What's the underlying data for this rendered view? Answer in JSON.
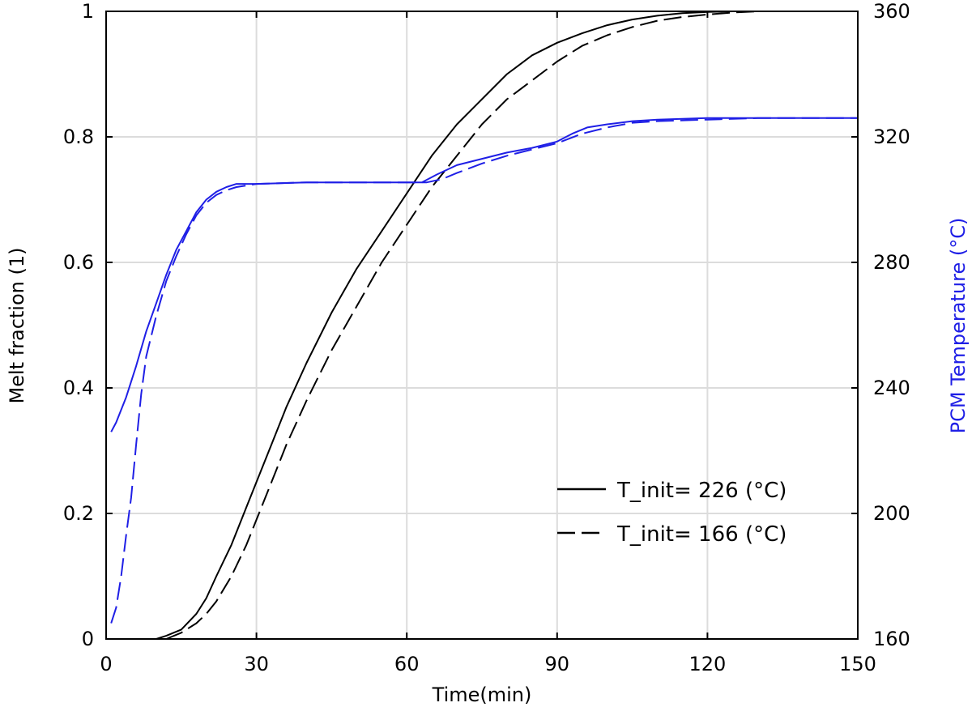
{
  "chart_data": {
    "type": "line",
    "xlabel": "Time(min)",
    "ylabel_left": "Melt fraction (1)",
    "ylabel_right": "PCM Temperature (°C)",
    "xlim": [
      0,
      150
    ],
    "ylim_left": [
      0,
      1
    ],
    "ylim_right": [
      160,
      360
    ],
    "x_ticks": [
      0,
      30,
      60,
      90,
      120,
      150
    ],
    "y_ticks_left": [
      0,
      0.2,
      0.4,
      0.6,
      0.8,
      1
    ],
    "y_ticks_left_labels": [
      "0",
      "0.2",
      "0.4",
      "0.6",
      "0.8",
      "1"
    ],
    "y_ticks_right": [
      160,
      200,
      240,
      280,
      320,
      360
    ],
    "grid": true,
    "legend_position": "lower-right",
    "colors": {
      "melt": "#000000",
      "temperature": "#1f1fe6",
      "grid": "#dcdcdc"
    },
    "legend": [
      {
        "label": "T_init= 226 (°C)",
        "style": "solid"
      },
      {
        "label": "T_init= 166 (°C)",
        "style": "dashed"
      }
    ],
    "series": [
      {
        "axis": "left",
        "color": "#000000",
        "style": "solid",
        "x": [
          10,
          12,
          15,
          18,
          20,
          22,
          25,
          28,
          30,
          33,
          36,
          40,
          45,
          50,
          55,
          60,
          65,
          70,
          75,
          80,
          85,
          90,
          95,
          100,
          105,
          110,
          115,
          120,
          125,
          130,
          135,
          140,
          145,
          150
        ],
        "y": [
          0,
          0.005,
          0.015,
          0.04,
          0.065,
          0.1,
          0.15,
          0.21,
          0.25,
          0.31,
          0.37,
          0.44,
          0.52,
          0.59,
          0.65,
          0.71,
          0.77,
          0.82,
          0.86,
          0.9,
          0.93,
          0.95,
          0.965,
          0.978,
          0.987,
          0.993,
          0.997,
          0.999,
          1,
          1,
          1,
          1,
          1,
          1
        ]
      },
      {
        "axis": "left",
        "color": "#000000",
        "style": "dashed",
        "x": [
          12,
          15,
          18,
          20,
          22,
          25,
          28,
          30,
          33,
          36,
          40,
          45,
          50,
          55,
          60,
          65,
          70,
          75,
          80,
          85,
          90,
          95,
          100,
          105,
          110,
          115,
          120,
          125,
          130,
          135,
          140,
          145,
          150
        ],
        "y": [
          0,
          0.01,
          0.025,
          0.04,
          0.06,
          0.1,
          0.15,
          0.19,
          0.25,
          0.31,
          0.38,
          0.46,
          0.53,
          0.6,
          0.66,
          0.72,
          0.77,
          0.82,
          0.86,
          0.89,
          0.92,
          0.945,
          0.962,
          0.975,
          0.985,
          0.991,
          0.995,
          0.998,
          1,
          1,
          1,
          1,
          1
        ]
      },
      {
        "axis": "right",
        "color": "#1f1fe6",
        "style": "solid",
        "x": [
          1,
          2,
          4,
          6,
          8,
          10,
          12,
          14,
          16,
          18,
          20,
          22,
          24,
          26,
          30,
          40,
          50,
          60,
          63,
          66,
          70,
          75,
          80,
          85,
          90,
          93,
          96,
          100,
          105,
          110,
          120,
          130,
          140,
          150
        ],
        "y": [
          226,
          229,
          237,
          247,
          258,
          267,
          276,
          284,
          290,
          296,
          300,
          302.5,
          304,
          305,
          305,
          305.5,
          305.5,
          305.5,
          305.5,
          308,
          311,
          313,
          315,
          316.5,
          318.5,
          321,
          323,
          324,
          325,
          325.5,
          326,
          326,
          326,
          326
        ]
      },
      {
        "axis": "right",
        "color": "#1f1fe6",
        "style": "dashed",
        "x": [
          1,
          2,
          3,
          4,
          5,
          6,
          7,
          8,
          10,
          12,
          14,
          16,
          18,
          20,
          22,
          24,
          26,
          28,
          30,
          40,
          50,
          60,
          64,
          67,
          70,
          75,
          80,
          85,
          90,
          95,
          100,
          105,
          110,
          120,
          130,
          140,
          150
        ],
        "y": [
          165,
          170,
          180,
          193,
          205,
          222,
          238,
          250,
          263,
          274,
          282,
          289,
          295,
          299,
          301.5,
          303,
          304,
          304.5,
          305,
          305.5,
          305.5,
          305.5,
          305.5,
          306.5,
          308.5,
          311.5,
          314,
          316,
          318,
          321,
          323,
          324.5,
          325,
          325.5,
          326,
          326,
          326
        ]
      }
    ]
  }
}
